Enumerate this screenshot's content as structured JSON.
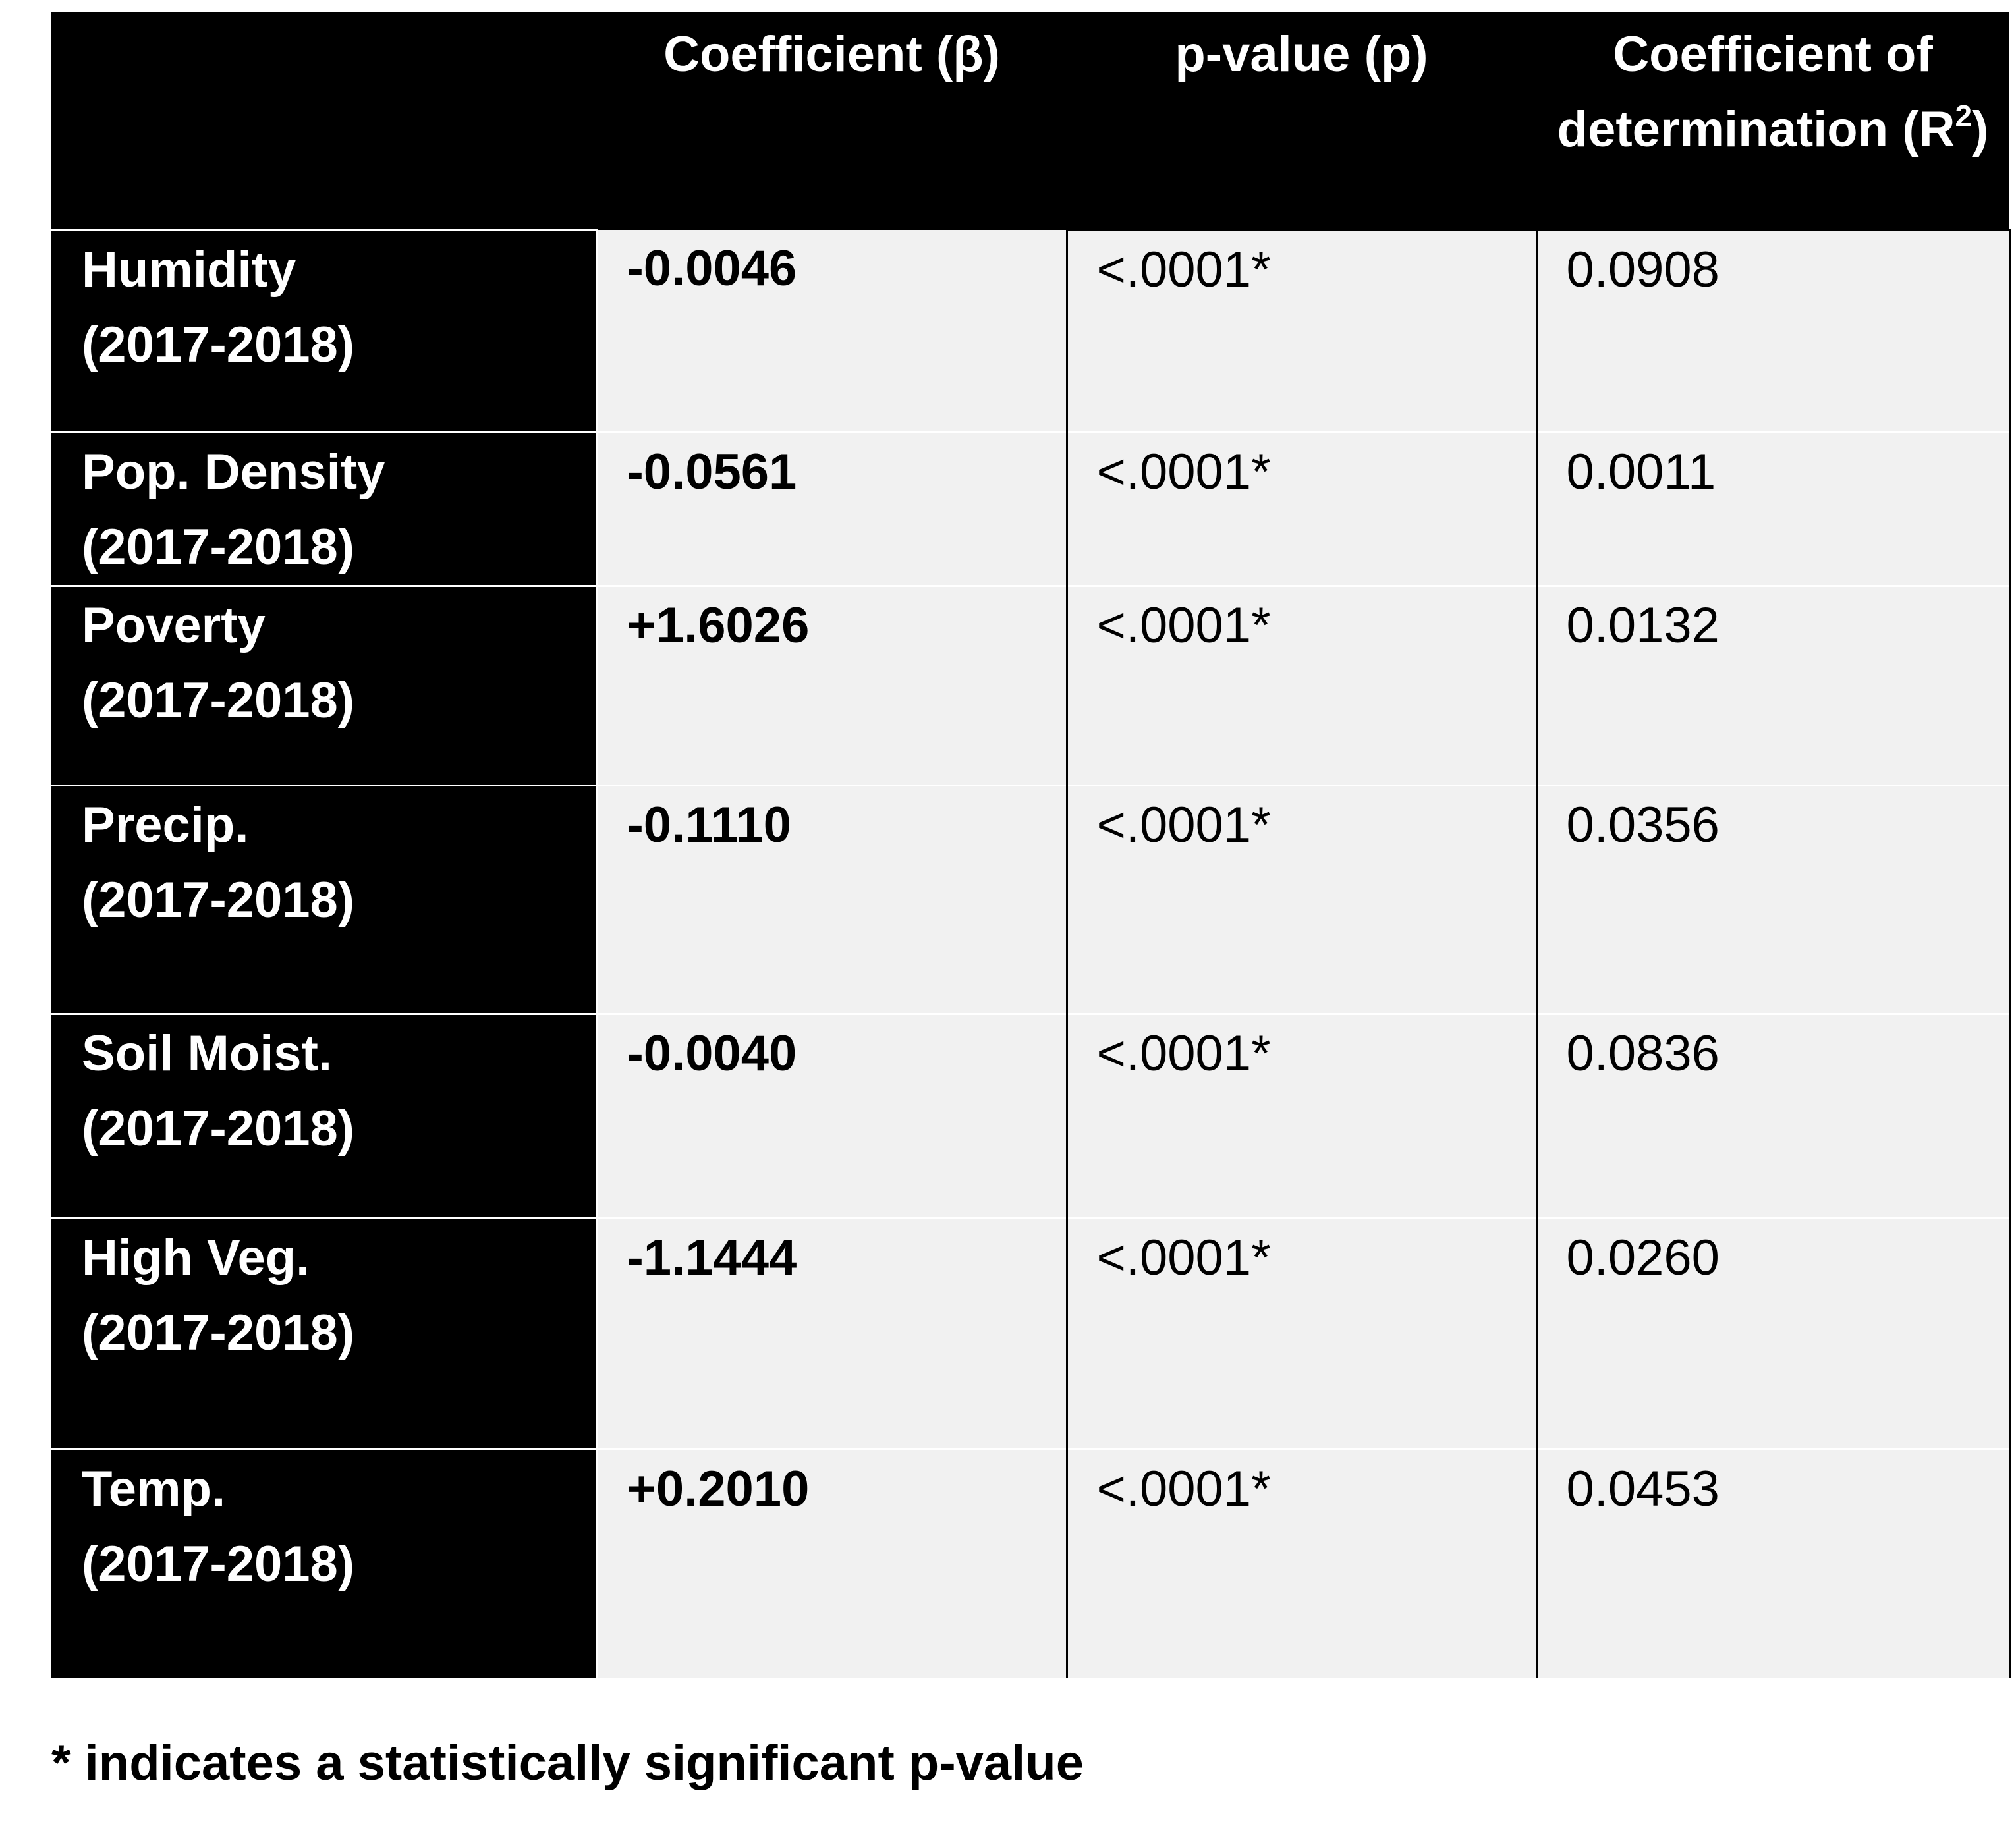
{
  "chart_data": {
    "type": "table",
    "columns": [
      "",
      "Coefficient (β)",
      "p-value (p)",
      "Coefficient of determination (R²)"
    ],
    "header": {
      "coef_label": "Coefficient (β)",
      "pval_label": "p-value (p)",
      "r2_label_main": "Coefficient of determination (R",
      "r2_sup": "2",
      "r2_close": ")"
    },
    "rows": [
      {
        "variable": "Humidity",
        "period": "(2017-2018)",
        "coefficient": "-0.0046",
        "coefficient_value": -0.0046,
        "sign": "negative",
        "p_value": "<.0001*",
        "r2": "0.0908"
      },
      {
        "variable": "Pop. Density",
        "period": "(2017-2018)",
        "coefficient": "-0.0561",
        "coefficient_value": -0.0561,
        "sign": "negative",
        "p_value": "<.0001*",
        "r2": "0.0011"
      },
      {
        "variable": "Poverty",
        "period": "(2017-2018)",
        "coefficient": "+1.6026",
        "coefficient_value": 1.6026,
        "sign": "positive",
        "p_value": "<.0001*",
        "r2": "0.0132"
      },
      {
        "variable": "Precip.",
        "period": "(2017-2018)",
        "coefficient": "-0.1110",
        "coefficient_value": -0.111,
        "sign": "negative",
        "p_value": "<.0001*",
        "r2": "0.0356"
      },
      {
        "variable": "Soil Moist.",
        "period": "(2017-2018)",
        "coefficient": "-0.0040",
        "coefficient_value": -0.004,
        "sign": "negative",
        "p_value": "<.0001*",
        "r2": "0.0836"
      },
      {
        "variable": "High Veg.",
        "period": "(2017-2018)",
        "coefficient": "-1.1444",
        "coefficient_value": -1.1444,
        "sign": "negative",
        "p_value": "<.0001*",
        "r2": "0.0260"
      },
      {
        "variable": "Temp.",
        "period": "(2017-2018)",
        "coefficient": "+0.2010",
        "coefficient_value": 0.201,
        "sign": "positive",
        "p_value": "<.0001*",
        "r2": "0.0453"
      }
    ],
    "footnote": "* indicates a statistically significant p-value",
    "colors": {
      "negative": "#ee0000",
      "positive": "#6aa84f",
      "header_bg": "#000000",
      "header_text": "#ffffff",
      "cell_bg": "#f1f1f1"
    }
  }
}
